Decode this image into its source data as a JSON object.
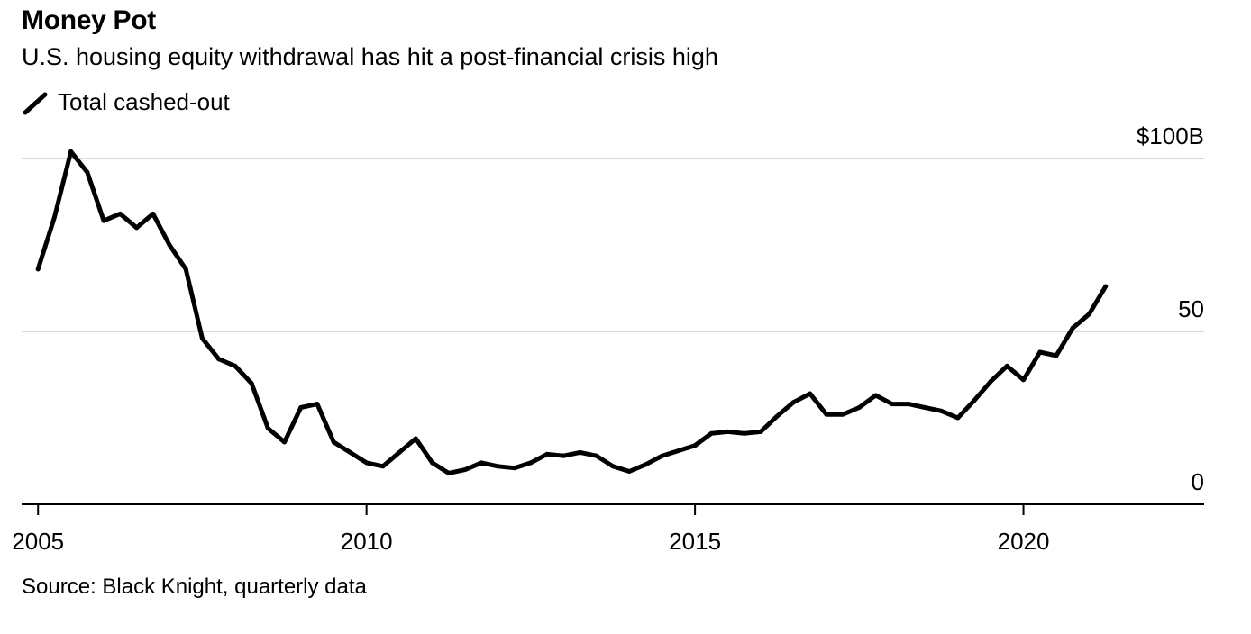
{
  "title": "Money Pot",
  "subtitle": "U.S. housing equity withdrawal has hit a post-financial crisis high",
  "source": "Source: Black Knight, quarterly data",
  "colors": {
    "line": "#000000",
    "grid": "#d9d9d9",
    "axis": "#000000"
  },
  "chart_data": {
    "type": "line",
    "title": "Money Pot",
    "subtitle": "U.S. housing equity withdrawal has hit a post-financial crisis high",
    "xlabel": "",
    "ylabel": "",
    "xlim": [
      2004.75,
      2022.75
    ],
    "ylim": [
      0,
      100
    ],
    "grid": true,
    "legend": "top-left",
    "x_ticks": [
      {
        "value": 2005,
        "label": "2005"
      },
      {
        "value": 2010,
        "label": "2010"
      },
      {
        "value": 2015,
        "label": "2015"
      },
      {
        "value": 2020,
        "label": "2020"
      }
    ],
    "y_ticks": [
      {
        "value": 0,
        "label": "0"
      },
      {
        "value": 50,
        "label": "50"
      },
      {
        "value": 100,
        "label": "$100B"
      }
    ],
    "series": [
      {
        "name": "Total cashed-out",
        "x": [
          2005.0,
          2005.25,
          2005.5,
          2005.75,
          2006.0,
          2006.25,
          2006.5,
          2006.75,
          2007.0,
          2007.25,
          2007.5,
          2007.75,
          2008.0,
          2008.25,
          2008.5,
          2008.75,
          2009.0,
          2009.25,
          2009.5,
          2009.75,
          2010.0,
          2010.25,
          2010.5,
          2010.75,
          2011.0,
          2011.25,
          2011.5,
          2011.75,
          2012.0,
          2012.25,
          2012.5,
          2012.75,
          2013.0,
          2013.25,
          2013.5,
          2013.75,
          2014.0,
          2014.25,
          2014.5,
          2014.75,
          2015.0,
          2015.25,
          2015.5,
          2015.75,
          2016.0,
          2016.25,
          2016.5,
          2016.75,
          2017.0,
          2017.25,
          2017.5,
          2017.75,
          2018.0,
          2018.25,
          2018.5,
          2018.75,
          2019.0,
          2019.25,
          2019.5,
          2019.75,
          2020.0,
          2020.25,
          2020.5,
          2020.75,
          2021.0,
          2021.25
        ],
        "values": [
          68,
          83,
          102,
          96,
          82,
          84,
          80,
          84,
          75,
          68,
          48,
          42,
          40,
          35,
          22,
          18,
          28,
          29,
          18,
          15,
          12,
          11,
          15,
          19,
          12,
          9,
          10,
          12,
          11,
          10.5,
          12,
          14.5,
          14,
          15,
          14,
          11,
          9.5,
          11.5,
          14,
          15.5,
          17,
          20.5,
          21,
          20.5,
          21,
          25.5,
          29.5,
          32,
          26,
          26,
          28,
          31.5,
          29,
          29,
          28,
          27,
          25,
          30,
          35.5,
          40,
          36,
          44,
          43,
          51,
          55,
          63
        ]
      }
    ]
  }
}
